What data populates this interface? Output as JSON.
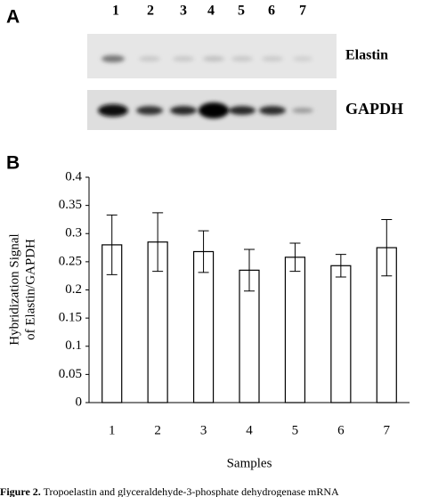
{
  "panel_a": {
    "label": "A",
    "lanes": [
      "1",
      "2",
      "3",
      "4",
      "5",
      "6",
      "7"
    ],
    "blots": [
      "Elastin",
      "GAPDH"
    ]
  },
  "panel_b": {
    "label": "B"
  },
  "chart_data": {
    "type": "bar",
    "categories": [
      "1",
      "2",
      "3",
      "4",
      "5",
      "6",
      "7"
    ],
    "values": [
      0.28,
      0.285,
      0.268,
      0.235,
      0.258,
      0.243,
      0.275
    ],
    "errors": [
      0.053,
      0.052,
      0.037,
      0.037,
      0.025,
      0.02,
      0.05
    ],
    "color": "#ffffff",
    "ylim": [
      0,
      0.4
    ],
    "yticks": [
      0,
      0.05,
      0.1,
      0.15,
      0.2,
      0.25,
      0.3,
      0.35,
      0.4
    ],
    "xlabel": "Samples",
    "ylabel": [
      "Hybridization Signal",
      "of Elastin/GAPDH"
    ],
    "grid": false
  },
  "caption": {
    "label": "Figure 2.",
    "text": "Tropoelastin and glyceraldehyde-3-phosphate dehydrogenase mRNA"
  }
}
